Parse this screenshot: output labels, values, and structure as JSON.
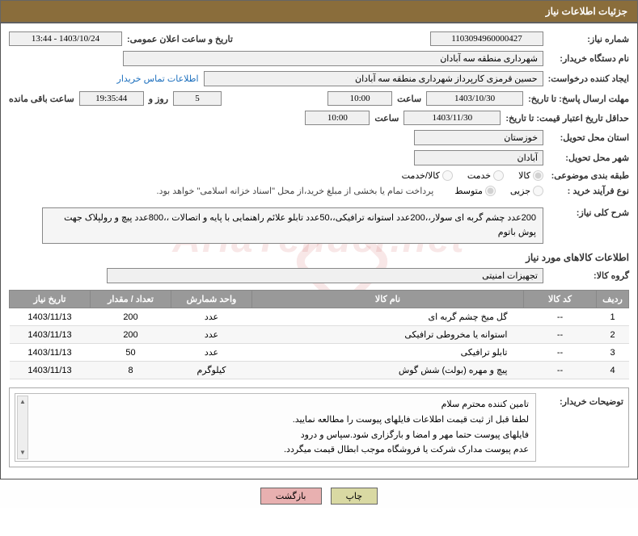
{
  "header": {
    "title": "جزئیات اطلاعات نیاز"
  },
  "form": {
    "need_no_label": "شماره نیاز:",
    "need_no": "1103094960000427",
    "announce_label": "تاریخ و ساعت اعلان عمومی:",
    "announce_value": "1403/10/24 - 13:44",
    "buyer_org_label": "نام دستگاه خریدار:",
    "buyer_org": "شهرداری منطقه سه آبادان",
    "requester_label": "ایجاد کننده درخواست:",
    "requester": "حسین قرمزی کارپرداز شهرداری منطقه سه آبادان",
    "contact_link": "اطلاعات تماس خریدار",
    "deadline_label": "مهلت ارسال پاسخ: تا تاریخ:",
    "deadline_date": "1403/10/30",
    "time_label": "ساعت",
    "deadline_time": "10:00",
    "days_label": "روز و",
    "days_value": "5",
    "remain_time": "19:35:44",
    "remain_label": "ساعت باقی مانده",
    "validity_label": "حداقل تاریخ اعتبار قیمت: تا تاریخ:",
    "validity_date": "1403/11/30",
    "validity_time": "10:00",
    "province_label": "استان محل تحویل:",
    "province": "خوزستان",
    "city_label": "شهر محل تحویل:",
    "city": "آبادان",
    "category_label": "طبقه بندی موضوعی:",
    "cat_kala": "کالا",
    "cat_khadamat": "خدمت",
    "cat_kalakhad": "کالا/خدمت",
    "process_label": "نوع فرآیند خرید :",
    "proc_jozei": "جزیی",
    "proc_motavaset": "متوسط",
    "payment_note": "پرداخت تمام یا بخشی از مبلغ خرید،از محل \"اسناد خزانه اسلامی\" خواهد بود.",
    "summary_label": "شرح کلی نیاز:",
    "summary": "200عدد چشم گربه ای سولار،،200عدد استوانه ترافیکی،،50عدد تابلو علائم راهنمایی با پایه و اتصالات ،،800عدد پیچ و رولپلاک جهت پوش باتوم",
    "goods_section": "اطلاعات کالاهای مورد نیاز",
    "group_label": "گروه کالا:",
    "group_value": "تجهیزات امنیتی",
    "buyer_desc_label": "توضیحات خریدار:",
    "buyer_desc": "تامین کننده محترم سلام\nلطفا قبل از ثبت قیمت اطلاعات فایلهای پیوست را مطالعه نمایید.\nفایلهای پیوست حتما مهر و امضا و بارگزاری شود.سپاس و درود\nعدم پیوست مدارک شرکت یا فروشگاه موجب ابطال قیمت میگردد."
  },
  "table": {
    "headers": {
      "row": "ردیف",
      "code": "کد کالا",
      "name": "نام کالا",
      "unit": "واحد شمارش",
      "qty": "تعداد / مقدار",
      "date": "تاریخ نیاز"
    },
    "rows": [
      {
        "row": "1",
        "code": "--",
        "name": "گل میخ چشم گربه ای",
        "unit": "عدد",
        "qty": "200",
        "date": "1403/11/13"
      },
      {
        "row": "2",
        "code": "--",
        "name": "استوانه یا مخروطی ترافیکی",
        "unit": "عدد",
        "qty": "200",
        "date": "1403/11/13"
      },
      {
        "row": "3",
        "code": "--",
        "name": "تابلو ترافیکی",
        "unit": "عدد",
        "qty": "50",
        "date": "1403/11/13"
      },
      {
        "row": "4",
        "code": "--",
        "name": "پیچ و مهره (بولت) شش گوش",
        "unit": "کیلوگرم",
        "qty": "8",
        "date": "1403/11/13"
      }
    ]
  },
  "buttons": {
    "print": "چاپ",
    "back": "بازگشت"
  }
}
